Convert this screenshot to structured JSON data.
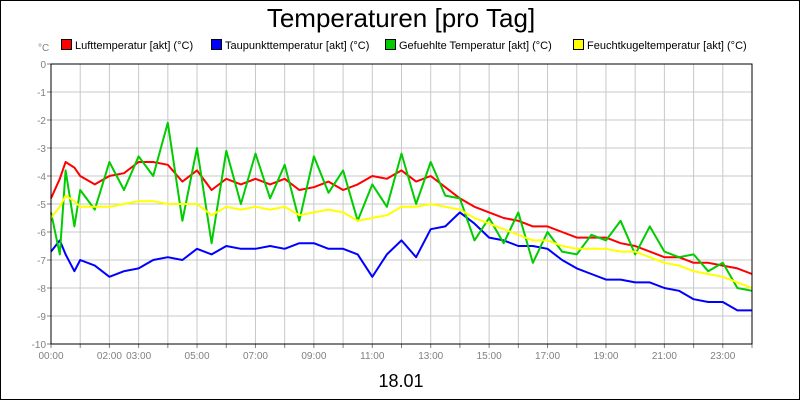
{
  "chart_data": {
    "type": "line",
    "title": "Temperaturen [pro Tag]",
    "ylabel": "°C",
    "xlabel": "18.01",
    "ylim": [
      -10,
      0
    ],
    "xlim": [
      0,
      24
    ],
    "grid": true,
    "legend_position": "top",
    "y_ticks": [
      "0",
      "-1",
      "-2",
      "-3",
      "-4",
      "-5",
      "-6",
      "-7",
      "-8",
      "-9",
      "-10"
    ],
    "x_ticks": [
      {
        "label": "00:00",
        "x": 0
      },
      {
        "label": "02:00",
        "x": 2
      },
      {
        "label": "03:00",
        "x": 3
      },
      {
        "label": "05:00",
        "x": 5
      },
      {
        "label": "07:00",
        "x": 7
      },
      {
        "label": "09:00",
        "x": 9
      },
      {
        "label": "11:00",
        "x": 11
      },
      {
        "label": "13:00",
        "x": 13
      },
      {
        "label": "15:00",
        "x": 15
      },
      {
        "label": "17:00",
        "x": 17
      },
      {
        "label": "19:00",
        "x": 19
      },
      {
        "label": "21:00",
        "x": 21
      },
      {
        "label": "23:00",
        "x": 23
      }
    ],
    "series": [
      {
        "name": "Lufttemperatur [akt] (°C)",
        "color": "#ff0000",
        "x": [
          0,
          0.3,
          0.5,
          0.8,
          1.0,
          1.5,
          2.0,
          2.5,
          3.0,
          3.5,
          4.0,
          4.5,
          5.0,
          5.5,
          6.0,
          6.5,
          7.0,
          7.5,
          8.0,
          8.5,
          9.0,
          9.5,
          10.0,
          10.5,
          11.0,
          11.5,
          12.0,
          12.5,
          13.0,
          13.5,
          14.0,
          14.5,
          15.0,
          15.5,
          16.0,
          16.5,
          17.0,
          17.5,
          18.0,
          18.5,
          19.0,
          19.5,
          20.0,
          20.5,
          21.0,
          21.5,
          22.0,
          22.5,
          23.0,
          23.5,
          24.0
        ],
        "values": [
          -4.8,
          -4.1,
          -3.5,
          -3.7,
          -4.0,
          -4.3,
          -4.0,
          -3.9,
          -3.5,
          -3.5,
          -3.6,
          -4.2,
          -3.8,
          -4.5,
          -4.1,
          -4.3,
          -4.1,
          -4.3,
          -4.1,
          -4.5,
          -4.4,
          -4.2,
          -4.5,
          -4.3,
          -4.0,
          -4.1,
          -3.8,
          -4.2,
          -4.0,
          -4.4,
          -4.8,
          -5.1,
          -5.3,
          -5.5,
          -5.6,
          -5.8,
          -5.8,
          -6.0,
          -6.2,
          -6.2,
          -6.2,
          -6.4,
          -6.5,
          -6.7,
          -6.9,
          -6.9,
          -7.1,
          -7.1,
          -7.2,
          -7.3,
          -7.5
        ]
      },
      {
        "name": "Taupunkttemperatur [akt] (°C)",
        "color": "#0000ff",
        "x": [
          0,
          0.3,
          0.5,
          0.8,
          1.0,
          1.5,
          2.0,
          2.5,
          3.0,
          3.5,
          4.0,
          4.5,
          5.0,
          5.5,
          6.0,
          6.5,
          7.0,
          7.5,
          8.0,
          8.5,
          9.0,
          9.5,
          10.0,
          10.5,
          11.0,
          11.5,
          12.0,
          12.5,
          13.0,
          13.5,
          14.0,
          14.5,
          15.0,
          15.5,
          16.0,
          16.5,
          17.0,
          17.5,
          18.0,
          18.5,
          19.0,
          19.5,
          20.0,
          20.5,
          21.0,
          21.5,
          22.0,
          22.5,
          23.0,
          23.5,
          24.0
        ],
        "values": [
          -6.7,
          -6.3,
          -6.8,
          -7.4,
          -7.0,
          -7.2,
          -7.6,
          -7.4,
          -7.3,
          -7.0,
          -6.9,
          -7.0,
          -6.6,
          -6.8,
          -6.5,
          -6.6,
          -6.6,
          -6.5,
          -6.6,
          -6.4,
          -6.4,
          -6.6,
          -6.6,
          -6.8,
          -7.6,
          -6.8,
          -6.3,
          -6.9,
          -5.9,
          -5.8,
          -5.3,
          -5.7,
          -6.2,
          -6.3,
          -6.5,
          -6.5,
          -6.6,
          -7.0,
          -7.3,
          -7.5,
          -7.7,
          -7.7,
          -7.8,
          -7.8,
          -8.0,
          -8.1,
          -8.4,
          -8.5,
          -8.5,
          -8.8,
          -8.8
        ]
      },
      {
        "name": "Gefuehlte Temperatur [akt] (°C)",
        "color": "#00cc00",
        "x": [
          0,
          0.3,
          0.5,
          0.8,
          1.0,
          1.5,
          2.0,
          2.5,
          3.0,
          3.5,
          4.0,
          4.5,
          5.0,
          5.5,
          6.0,
          6.5,
          7.0,
          7.5,
          8.0,
          8.5,
          9.0,
          9.5,
          10.0,
          10.5,
          11.0,
          11.5,
          12.0,
          12.5,
          13.0,
          13.5,
          14.0,
          14.5,
          15.0,
          15.5,
          16.0,
          16.5,
          17.0,
          17.5,
          18.0,
          18.5,
          19.0,
          19.5,
          20.0,
          20.5,
          21.0,
          21.5,
          22.0,
          22.5,
          23.0,
          23.5,
          24.0
        ],
        "values": [
          -5.3,
          -6.8,
          -3.8,
          -5.8,
          -4.5,
          -5.2,
          -3.5,
          -4.5,
          -3.3,
          -4.0,
          -2.1,
          -5.6,
          -3.0,
          -6.4,
          -3.1,
          -5.0,
          -3.2,
          -4.8,
          -3.6,
          -5.6,
          -3.3,
          -4.6,
          -3.8,
          -5.6,
          -4.3,
          -5.1,
          -3.2,
          -5.0,
          -3.5,
          -4.7,
          -4.8,
          -6.3,
          -5.5,
          -6.4,
          -5.3,
          -7.1,
          -6.0,
          -6.7,
          -6.8,
          -6.1,
          -6.3,
          -5.6,
          -6.8,
          -5.8,
          -6.7,
          -6.9,
          -6.8,
          -7.4,
          -7.1,
          -8.0,
          -8.1
        ]
      },
      {
        "name": "Feuchtkugeltemperatur [akt] (°C)",
        "color": "#ffff00",
        "x": [
          0,
          0.3,
          0.5,
          0.8,
          1.0,
          1.5,
          2.0,
          2.5,
          3.0,
          3.5,
          4.0,
          4.5,
          5.0,
          5.5,
          6.0,
          6.5,
          7.0,
          7.5,
          8.0,
          8.5,
          9.0,
          9.5,
          10.0,
          10.5,
          11.0,
          11.5,
          12.0,
          12.5,
          13.0,
          13.5,
          14.0,
          14.5,
          15.0,
          15.5,
          16.0,
          16.5,
          17.0,
          17.5,
          18.0,
          18.5,
          19.0,
          19.5,
          20.0,
          20.5,
          21.0,
          21.5,
          22.0,
          22.5,
          23.0,
          23.5,
          24.0
        ],
        "values": [
          -5.5,
          -5.1,
          -4.7,
          -4.9,
          -5.1,
          -5.1,
          -5.1,
          -5.0,
          -4.9,
          -4.9,
          -5.0,
          -5.0,
          -5.0,
          -5.4,
          -5.1,
          -5.2,
          -5.1,
          -5.2,
          -5.1,
          -5.4,
          -5.3,
          -5.2,
          -5.3,
          -5.6,
          -5.5,
          -5.4,
          -5.1,
          -5.1,
          -5.0,
          -5.1,
          -5.2,
          -5.5,
          -5.7,
          -5.9,
          -6.1,
          -6.3,
          -6.3,
          -6.5,
          -6.6,
          -6.6,
          -6.6,
          -6.7,
          -6.7,
          -6.9,
          -7.1,
          -7.2,
          -7.4,
          -7.5,
          -7.6,
          -7.8,
          -8.0
        ]
      }
    ]
  }
}
